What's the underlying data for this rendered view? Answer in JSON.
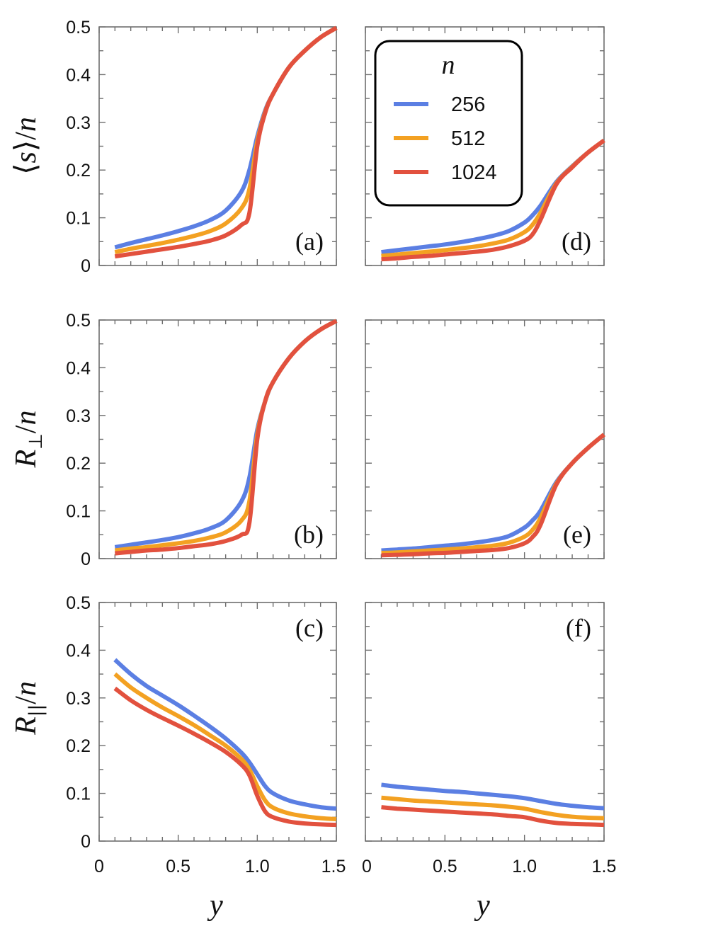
{
  "colors": {
    "256": "#5b7fe3",
    "512": "#f3a122",
    "1024": "#e2513e"
  },
  "legend": {
    "title": "n",
    "entries": [
      {
        "label": "256",
        "color": "#5b7fe3"
      },
      {
        "label": "512",
        "color": "#f3a122"
      },
      {
        "label": "1024",
        "color": "#e2513e"
      }
    ]
  },
  "axes": {
    "x_title": "y",
    "x_ticks": [
      "0",
      "0.5",
      "1.0",
      "1.5"
    ],
    "y_ticks": [
      "0",
      "0.1",
      "0.2",
      "0.3",
      "0.4",
      "0.5"
    ],
    "row_titles": [
      {
        "pre": "⟨",
        "var": "s",
        "post": "⟩/",
        "den": "n"
      },
      {
        "var": "R",
        "sub": "⊥",
        "post": "/",
        "den": "n"
      },
      {
        "var": "R",
        "sub": "||",
        "post": "/",
        "den": "n"
      }
    ]
  },
  "chart_data": [
    {
      "panel": "a",
      "label": "(a)",
      "type": "line",
      "xlim": [
        0,
        1.5
      ],
      "ylim": [
        0,
        0.5
      ],
      "xlabel": "",
      "ylabel": "⟨s⟩/n",
      "x": [
        0.1,
        0.2,
        0.3,
        0.4,
        0.5,
        0.6,
        0.7,
        0.8,
        0.9,
        0.95,
        1.0,
        1.05,
        1.1,
        1.2,
        1.3,
        1.4,
        1.5
      ],
      "series": [
        {
          "name": "256",
          "values": [
            0.038,
            0.047,
            0.055,
            0.063,
            0.072,
            0.082,
            0.095,
            0.115,
            0.155,
            0.2,
            0.27,
            0.325,
            0.36,
            0.415,
            0.45,
            0.478,
            0.498
          ]
        },
        {
          "name": "512",
          "values": [
            0.028,
            0.035,
            0.041,
            0.047,
            0.054,
            0.062,
            0.072,
            0.088,
            0.12,
            0.16,
            0.26,
            0.322,
            0.36,
            0.415,
            0.45,
            0.478,
            0.498
          ]
        },
        {
          "name": "1024",
          "values": [
            0.019,
            0.024,
            0.029,
            0.034,
            0.039,
            0.045,
            0.052,
            0.063,
            0.085,
            0.11,
            0.25,
            0.32,
            0.36,
            0.415,
            0.45,
            0.478,
            0.498
          ]
        }
      ]
    },
    {
      "panel": "b",
      "label": "(b)",
      "type": "line",
      "xlim": [
        0,
        1.5
      ],
      "ylim": [
        0,
        0.5
      ],
      "xlabel": "",
      "ylabel": "R⊥/n",
      "x": [
        0.1,
        0.2,
        0.3,
        0.4,
        0.5,
        0.6,
        0.7,
        0.8,
        0.9,
        0.95,
        1.0,
        1.05,
        1.1,
        1.2,
        1.3,
        1.4,
        1.5
      ],
      "series": [
        {
          "name": "256",
          "values": [
            0.024,
            0.029,
            0.034,
            0.039,
            0.045,
            0.053,
            0.063,
            0.08,
            0.12,
            0.17,
            0.27,
            0.33,
            0.37,
            0.42,
            0.455,
            0.48,
            0.498
          ]
        },
        {
          "name": "512",
          "values": [
            0.017,
            0.021,
            0.024,
            0.028,
            0.032,
            0.037,
            0.044,
            0.055,
            0.08,
            0.12,
            0.26,
            0.33,
            0.37,
            0.42,
            0.455,
            0.48,
            0.498
          ]
        },
        {
          "name": "1024",
          "values": [
            0.011,
            0.014,
            0.017,
            0.019,
            0.022,
            0.026,
            0.03,
            0.037,
            0.05,
            0.075,
            0.25,
            0.33,
            0.37,
            0.42,
            0.455,
            0.48,
            0.498
          ]
        }
      ]
    },
    {
      "panel": "c",
      "label": "(c)",
      "type": "line",
      "xlim": [
        0,
        1.5
      ],
      "ylim": [
        0,
        0.5
      ],
      "xlabel": "y",
      "ylabel": "R||/n",
      "x": [
        0.1,
        0.2,
        0.3,
        0.4,
        0.5,
        0.6,
        0.7,
        0.8,
        0.9,
        0.95,
        1.0,
        1.05,
        1.1,
        1.2,
        1.3,
        1.4,
        1.5
      ],
      "series": [
        {
          "name": "256",
          "values": [
            0.38,
            0.35,
            0.325,
            0.305,
            0.285,
            0.263,
            0.24,
            0.215,
            0.185,
            0.165,
            0.14,
            0.115,
            0.1,
            0.085,
            0.077,
            0.071,
            0.068
          ]
        },
        {
          "name": "512",
          "values": [
            0.35,
            0.322,
            0.3,
            0.28,
            0.262,
            0.243,
            0.222,
            0.2,
            0.172,
            0.15,
            0.115,
            0.085,
            0.07,
            0.058,
            0.052,
            0.048,
            0.046
          ]
        },
        {
          "name": "1024",
          "values": [
            0.32,
            0.295,
            0.275,
            0.258,
            0.242,
            0.225,
            0.207,
            0.187,
            0.16,
            0.138,
            0.095,
            0.062,
            0.05,
            0.041,
            0.037,
            0.035,
            0.034
          ]
        }
      ]
    },
    {
      "panel": "d",
      "label": "(d)",
      "type": "line",
      "xlim": [
        0,
        1.5
      ],
      "ylim": [
        0,
        0.5
      ],
      "xlabel": "",
      "ylabel": "",
      "x": [
        0.1,
        0.2,
        0.3,
        0.4,
        0.5,
        0.6,
        0.7,
        0.8,
        0.9,
        1.0,
        1.05,
        1.1,
        1.2,
        1.3,
        1.4,
        1.5
      ],
      "series": [
        {
          "name": "256",
          "values": [
            0.028,
            0.032,
            0.036,
            0.04,
            0.044,
            0.049,
            0.055,
            0.062,
            0.072,
            0.09,
            0.105,
            0.125,
            0.175,
            0.208,
            0.237,
            0.262
          ]
        },
        {
          "name": "512",
          "values": [
            0.02,
            0.023,
            0.026,
            0.029,
            0.032,
            0.036,
            0.04,
            0.046,
            0.054,
            0.07,
            0.085,
            0.11,
            0.172,
            0.207,
            0.237,
            0.262
          ]
        },
        {
          "name": "1024",
          "values": [
            0.013,
            0.015,
            0.018,
            0.02,
            0.023,
            0.026,
            0.029,
            0.033,
            0.04,
            0.052,
            0.065,
            0.095,
            0.17,
            0.206,
            0.237,
            0.262
          ]
        }
      ]
    },
    {
      "panel": "e",
      "label": "(e)",
      "type": "line",
      "xlim": [
        0,
        1.5
      ],
      "ylim": [
        0,
        0.5
      ],
      "xlabel": "",
      "ylabel": "",
      "x": [
        0.1,
        0.2,
        0.3,
        0.4,
        0.5,
        0.6,
        0.7,
        0.8,
        0.9,
        1.0,
        1.05,
        1.1,
        1.2,
        1.3,
        1.4,
        1.5
      ],
      "series": [
        {
          "name": "256",
          "values": [
            0.017,
            0.019,
            0.021,
            0.024,
            0.027,
            0.03,
            0.034,
            0.039,
            0.047,
            0.065,
            0.08,
            0.1,
            0.16,
            0.2,
            0.232,
            0.26
          ]
        },
        {
          "name": "512",
          "values": [
            0.012,
            0.013,
            0.015,
            0.017,
            0.019,
            0.021,
            0.024,
            0.027,
            0.033,
            0.046,
            0.06,
            0.085,
            0.157,
            0.2,
            0.232,
            0.26
          ]
        },
        {
          "name": "1024",
          "values": [
            0.007,
            0.008,
            0.009,
            0.011,
            0.012,
            0.014,
            0.016,
            0.018,
            0.022,
            0.032,
            0.045,
            0.07,
            0.155,
            0.2,
            0.232,
            0.26
          ]
        }
      ]
    },
    {
      "panel": "f",
      "label": "(f)",
      "type": "line",
      "xlim": [
        0,
        1.5
      ],
      "ylim": [
        0,
        0.5
      ],
      "xlabel": "y",
      "ylabel": "",
      "x": [
        0.1,
        0.2,
        0.3,
        0.4,
        0.5,
        0.6,
        0.7,
        0.8,
        0.9,
        1.0,
        1.1,
        1.2,
        1.3,
        1.4,
        1.5
      ],
      "series": [
        {
          "name": "256",
          "values": [
            0.118,
            0.114,
            0.111,
            0.108,
            0.105,
            0.103,
            0.1,
            0.097,
            0.094,
            0.09,
            0.084,
            0.078,
            0.074,
            0.071,
            0.069
          ]
        },
        {
          "name": "512",
          "values": [
            0.091,
            0.088,
            0.085,
            0.083,
            0.081,
            0.079,
            0.077,
            0.075,
            0.072,
            0.068,
            0.061,
            0.055,
            0.051,
            0.049,
            0.048
          ]
        },
        {
          "name": "1024",
          "values": [
            0.071,
            0.068,
            0.066,
            0.064,
            0.062,
            0.06,
            0.058,
            0.056,
            0.053,
            0.05,
            0.043,
            0.038,
            0.036,
            0.035,
            0.034
          ]
        }
      ]
    }
  ]
}
